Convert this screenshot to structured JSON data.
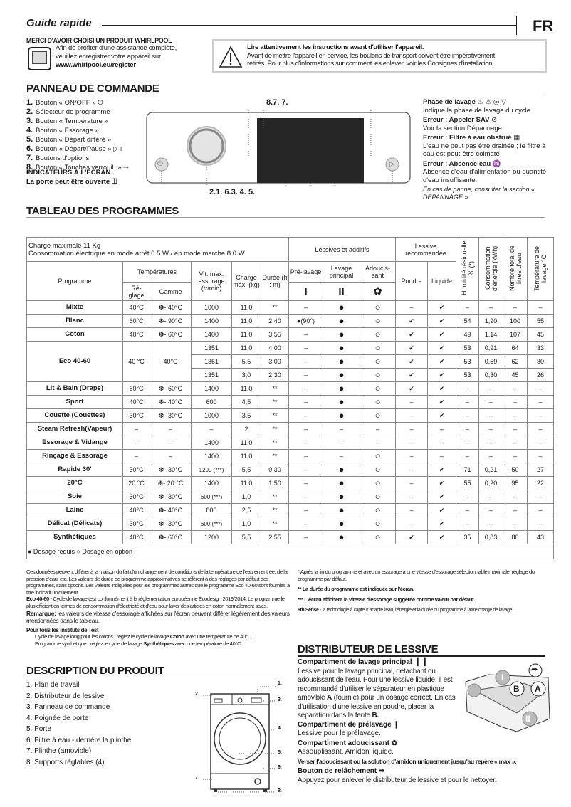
{
  "header": {
    "title": "Guide rapide",
    "lang": "FR"
  },
  "register": {
    "title": "MERCI D'AVOIR CHOISI UN PRODUIT WHIRLPOOL",
    "line1": "Afin de profiter d'une assistance complète,",
    "line2": "veuillez enregistrer votre appareil sur",
    "url": "www.whirlpool.eu/register"
  },
  "warning": {
    "title": "Lire attentivement les instructions avant d'utiliser l'appareil.",
    "line1": "Avant de mettre l'appareil en service, les boulons de transport doivent être impérativement",
    "line2": "retirés. Pour plus d'informations sur comment les enlever, voir les Consignes d'installation."
  },
  "panel": {
    "title": "PANNEAU DE COMMANDE",
    "items": [
      {
        "n": "1.",
        "label": "Bouton « ON/OFF »",
        "icon": "⏻"
      },
      {
        "n": "2.",
        "label": "Sélecteur de programme",
        "icon": ""
      },
      {
        "n": "3.",
        "label": "Bouton « Température »",
        "icon": ""
      },
      {
        "n": "4.",
        "label": "Bouton « Essorage »",
        "icon": ""
      },
      {
        "n": "5.",
        "label": "Bouton « Départ différé »",
        "icon": ""
      },
      {
        "n": "6.",
        "label": "Bouton « Départ/Pause »",
        "icon": "▷॥"
      },
      {
        "n": "7.",
        "label": "Boutons d'options",
        "icon": ""
      },
      {
        "n": "8.",
        "label": "Bouton « Touches verrouil. »",
        "icon": "⊸"
      }
    ],
    "indicators_title": "INDICATEURS À L'ÉCRAN",
    "door_label": "La porte peut être ouverte",
    "top_callout": "8.7. 7.",
    "bottom_callout": "2.1. 6.3. 4. 5.",
    "right": [
      {
        "title": "Phase de lavage",
        "icons": "♨ ⚠ ◎ ▽",
        "text": "Indique la phase de lavage du cycle"
      },
      {
        "title": "Erreur : Appeler SAV",
        "icons": "⊘",
        "text": "Voir la section Dépannage"
      },
      {
        "title": "Erreur : Filtre à eau obstrué",
        "icons": "▦",
        "text": "L'eau ne peut pas être drainée ; le filtre à eau est peut-être colmaté"
      },
      {
        "title": "Erreur : Absence eau",
        "icons": "♒",
        "text": "Absence d'eau d'alimentation ou quantité d'eau insuffisante."
      }
    ],
    "panne_note": "En cas de panne, consulter la section « DÉPANNAGE »"
  },
  "table": {
    "title": "TABLEAU DES PROGRAMMES",
    "charge_line1": "Charge maximale 11 Kg",
    "charge_line2": "Consommation électrique en mode arrêt 0.5 W / en mode marche 8.0 W",
    "h_lessives": "Lessives et additifs",
    "h_recommandee": "Lessive recommandée",
    "h_humidite": "Humidité résiduelle % (*)",
    "h_conso": "Consommation d'énergie (kWh)",
    "h_litres": "Nombre total de litres d'eau",
    "h_temp": "Température de lavage °C",
    "h_programme": "Programme",
    "h_temperatures": "Températures",
    "h_vit": "Vit. max. essorage (tr/min)",
    "h_charge": "Charge max. (kg)",
    "h_duree": "Durée (h : m)",
    "h_pre": "Pré-lavage",
    "h_lavage": "Lavage principal",
    "h_adou": "Adoucis-sant",
    "h_poudre": "Poudre",
    "h_liquide": "Liquide",
    "h_reglage": "Ré-glage",
    "h_gamme": "Gamme",
    "icon_pre": "I",
    "icon_lavage": "II",
    "icon_adou": "✿",
    "rows": [
      [
        "Mixte",
        "40°C",
        "❆- 40°C",
        "1000",
        "11,0",
        "**",
        "–",
        "●",
        "○",
        "–",
        "✔",
        "–",
        "–",
        "–",
        "–"
      ],
      [
        "Blanc",
        "60°C",
        "❆- 90°C",
        "1400",
        "11,0",
        "2:40",
        "●(90°)",
        "●",
        "○",
        "✔",
        "✔",
        "54",
        "1,90",
        "100",
        "55"
      ],
      [
        "Coton",
        "40°C",
        "❆- 60°C",
        "1400",
        "11,0",
        "3:55",
        "–",
        "●",
        "○",
        "✔",
        "✔",
        "49",
        "1,14",
        "107",
        "45"
      ],
      [
        "Eco 40-60",
        "40 °C",
        "40°C",
        "1351",
        "11,0",
        "4:00",
        "–",
        "●",
        "○",
        "✔",
        "✔",
        "53",
        "0,91",
        "64",
        "33"
      ],
      [
        "",
        "",
        "",
        "1351",
        "5,5",
        "3:00",
        "–",
        "●",
        "○",
        "✔",
        "✔",
        "53",
        "0,59",
        "62",
        "30"
      ],
      [
        "",
        "",
        "",
        "1351",
        "3,0",
        "2:30",
        "–",
        "●",
        "○",
        "✔",
        "✔",
        "53",
        "0,30",
        "45",
        "26"
      ],
      [
        "Lit & Bain (Draps)",
        "60°C",
        "❆- 60°C",
        "1400",
        "11,0",
        "**",
        "–",
        "●",
        "○",
        "✔",
        "✔",
        "–",
        "–",
        "–",
        "–"
      ],
      [
        "Sport",
        "40°C",
        "❆- 40°C",
        "600",
        "4,5",
        "**",
        "–",
        "●",
        "○",
        "–",
        "✔",
        "–",
        "–",
        "–",
        "–"
      ],
      [
        "Couette (Couettes)",
        "30°C",
        "❆- 30°C",
        "1000",
        "3,5",
        "**",
        "–",
        "●",
        "○",
        "–",
        "✔",
        "–",
        "–",
        "–",
        "–"
      ],
      [
        "Steam Refresh(Vapeur)",
        "–",
        "–",
        "–",
        "2",
        "**",
        "–",
        "–",
        "–",
        "–",
        "–",
        "–",
        "–",
        "–",
        "–"
      ],
      [
        "Essorage & Vidange",
        "–",
        "–",
        "1400",
        "11,0",
        "**",
        "–",
        "–",
        "–",
        "–",
        "–",
        "–",
        "–",
        "–",
        "–"
      ],
      [
        "Rinçage & Essorage",
        "–",
        "–",
        "1400",
        "11,0",
        "**",
        "–",
        "–",
        "○",
        "–",
        "–",
        "–",
        "–",
        "–",
        "–"
      ],
      [
        "Rapide 30'",
        "30°C",
        "❆- 30°C",
        "1200 (***)",
        "5,5",
        "0:30",
        "–",
        "●",
        "○",
        "–",
        "✔",
        "71",
        "0,21",
        "50",
        "27"
      ],
      [
        "20°C",
        "20 °C",
        "❆- 20 °C",
        "1400",
        "11,0",
        "1:50",
        "–",
        "●",
        "○",
        "–",
        "✔",
        "55",
        "0,20",
        "95",
        "22"
      ],
      [
        "Soie",
        "30°C",
        "❆- 30°C",
        "600 (***)",
        "1,0",
        "**",
        "–",
        "●",
        "○",
        "–",
        "✔",
        "–",
        "–",
        "–",
        "–"
      ],
      [
        "Laine",
        "40°C",
        "❆- 40°C",
        "800",
        "2,5",
        "**",
        "–",
        "●",
        "○",
        "–",
        "✔",
        "–",
        "–",
        "–",
        "–"
      ],
      [
        "Délicat (Délicats)",
        "30°C",
        "❆- 30°C",
        "600 (***)",
        "1,0",
        "**",
        "–",
        "●",
        "○",
        "–",
        "✔",
        "–",
        "–",
        "–",
        "–"
      ],
      [
        "Synthétiques",
        "40°C",
        "❆- 60°C",
        "1200",
        "5,5",
        "2:55",
        "–",
        "●",
        "○",
        "✔",
        "✔",
        "35",
        "0,83",
        "80",
        "43"
      ]
    ],
    "legend": "● Dosage requis ○ Dosage en option"
  },
  "notes": {
    "p1": "Ces données peuvent différer à la maison du fait d'un changement de conditions de la température de l'eau en entrée, de la pression d'eau, etc. Les valeurs de durée de programme approximatives se réfèrent à des réglages par défaut des programmes, sans options. Les valeurs indiquées pour les programmes autres que le programme Eco 40-60 sont fournies à titre indicatif uniquement.",
    "eco_b": "Eco 40-60",
    "eco": " - Cycle de lavage test conformément à la réglementation européenne Écodesign 2019/2014. Le programme le plus efficient en termes de consommation d'électricité et d'eau pour laver des articles en coton normalement sales.",
    "rem_b": "Remarque:",
    "rem": " les valeurs de vitesse d'essorage affichées sur l'écran peuvent différer légèrement des valeurs mentionnées dans le tableau.",
    "inst_title": "Pour tous les Instituts de Test",
    "inst1a": "Cycle de lavage long pour les cotons : réglez le cycle de lavage ",
    "inst1b": "Coton",
    "inst1c": " avec une température de 40°C.",
    "inst2a": "Programme synthétique : réglez le cycle de lavage ",
    "inst2b": "Synthétiques",
    "inst2c": " avec une température de 40°C",
    "star1": "*    Après la fin du programme et avec un essorage à une vitesse d'essorage sélectionnable maximale, réglage du programme par défaut.",
    "star2": "**    La durée du programme est indiquée sur l'écran.",
    "star3": "*** L'écran affichera la vitesse d'essorage suggérée comme valeur par défaut.",
    "sense_b": "6th Sense",
    "sense": " - la technologie à capteur adapte l'eau, l'énergie et la durée du programme à votre charge de lavage."
  },
  "description": {
    "title": "DESCRIPTION DU PRODUIT",
    "items": [
      "1.  Plan de travail",
      "2.  Distributeur de lessive",
      "3.  Panneau de commande",
      "4.  Poignée de porte",
      "5.  Porte",
      "6.  Filtre à eau - derrière la plinthe",
      "7.  Plinthe (amovible)",
      "8.  Supports réglables (4)"
    ],
    "callouts": [
      "1.",
      "2.",
      "3.",
      "4.",
      "5.",
      "6.",
      "7.",
      "8."
    ]
  },
  "distributor": {
    "title": "DISTRIBUTEUR DE LESSIVE",
    "main_title": "Compartiment de lavage principal",
    "main_text1": "Lessive pour le lavage principal, détachant ou adoucissant de l'eau. Pour une lessive liquide, il est recommandé d'utiliser le séparateur en plastique amovible ",
    "main_A": "A",
    "main_text2": " (fournie) pour un dosage correct. En cas d'utilisation d'une lessive en poudre, placer la séparation dans la fente ",
    "main_B": "B.",
    "pre_title": "Compartiment de prélavage",
    "pre_text": "Lessive pour le prélavage.",
    "adou_title": "Compartiment adoucissant",
    "adou_text": "Assouplissant. Amidon liquide.",
    "adou_warn": "Verser l'adoucissant ou la solution d'amidon uniquement jusqu'au repère « max ».",
    "rel_title": "Bouton de relâchement",
    "rel_text": "Appuyez pour enlever le distributeur de lessive et pour le nettoyer.",
    "label_A": "A",
    "label_B": "B",
    "label_I": "I",
    "label_II": "II"
  }
}
